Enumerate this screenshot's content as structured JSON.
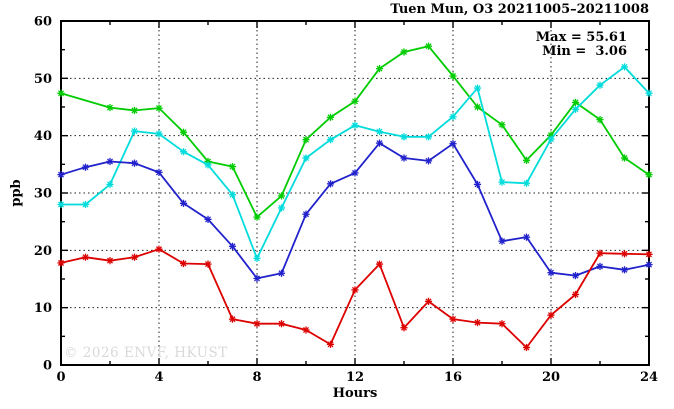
{
  "header": {
    "title": "Tuen Mun, O3 20211005–20211008"
  },
  "legend": {
    "max_label": "Max = 55.61",
    "min_label": "Min =  3.06"
  },
  "watermark": {
    "text": "© 2026 ENVF, HKUST"
  },
  "chart_data": {
    "type": "line",
    "title": "Tuen Mun, O3 20211005–20211008",
    "xlabel": "Hours",
    "ylabel": "ppb",
    "xlim": [
      0,
      24
    ],
    "ylim": [
      0,
      60
    ],
    "x_major_ticks": [
      0,
      4,
      8,
      12,
      16,
      20,
      24
    ],
    "x_minor_ticks": [
      2,
      6,
      10,
      14,
      18,
      22
    ],
    "y_major_ticks": [
      0,
      10,
      20,
      30,
      40,
      50,
      60
    ],
    "y_minor_ticks": [
      5,
      15,
      25,
      35,
      45,
      55
    ],
    "grid": "dotted lines at major ticks, ticks mirrored on all four borders",
    "legend_position": "top-right inside plot",
    "marker": "asterisk",
    "x": [
      0,
      1,
      2,
      3,
      4,
      5,
      6,
      7,
      8,
      9,
      10,
      11,
      12,
      13,
      14,
      15,
      16,
      17,
      18,
      19,
      20,
      21,
      22,
      23,
      24
    ],
    "series": [
      {
        "id": "green",
        "color": "#00cc00",
        "values": [
          47.4,
          null,
          44.9,
          44.4,
          44.8,
          40.6,
          35.5,
          34.6,
          25.8,
          29.5,
          39.3,
          43.2,
          46.0,
          51.7,
          54.6,
          55.61,
          50.4,
          45.0,
          41.9,
          35.7,
          40.1,
          45.8,
          42.8,
          36.1,
          33.2
        ]
      },
      {
        "id": "cyan",
        "color": "#00dcdc",
        "values": [
          28.0,
          28.0,
          31.5,
          40.8,
          40.3,
          37.2,
          34.9,
          29.7,
          18.6,
          27.4,
          36.1,
          39.3,
          41.8,
          40.7,
          39.8,
          39.8,
          43.3,
          48.3,
          31.9,
          31.7,
          39.4,
          44.6,
          48.8,
          52.0,
          47.4
        ]
      },
      {
        "id": "blue",
        "color": "#2222cc",
        "values": [
          33.2,
          34.5,
          35.5,
          35.2,
          33.6,
          28.2,
          25.4,
          20.7,
          15.1,
          16.0,
          26.3,
          31.6,
          33.5,
          38.7,
          36.1,
          35.6,
          38.6,
          31.5,
          21.6,
          22.3,
          16.1,
          15.6,
          17.2,
          16.6,
          17.5
        ]
      },
      {
        "id": "red",
        "color": "#dd0000",
        "values": [
          17.8,
          18.8,
          18.2,
          18.8,
          20.2,
          17.7,
          17.6,
          8.0,
          7.2,
          7.2,
          6.1,
          3.6,
          13.1,
          17.6,
          6.5,
          11.1,
          8.0,
          7.4,
          7.2,
          3.06,
          8.7,
          12.3,
          19.5,
          19.4,
          19.3
        ]
      }
    ],
    "annotations": {
      "max": 55.61,
      "min": 3.06
    }
  }
}
